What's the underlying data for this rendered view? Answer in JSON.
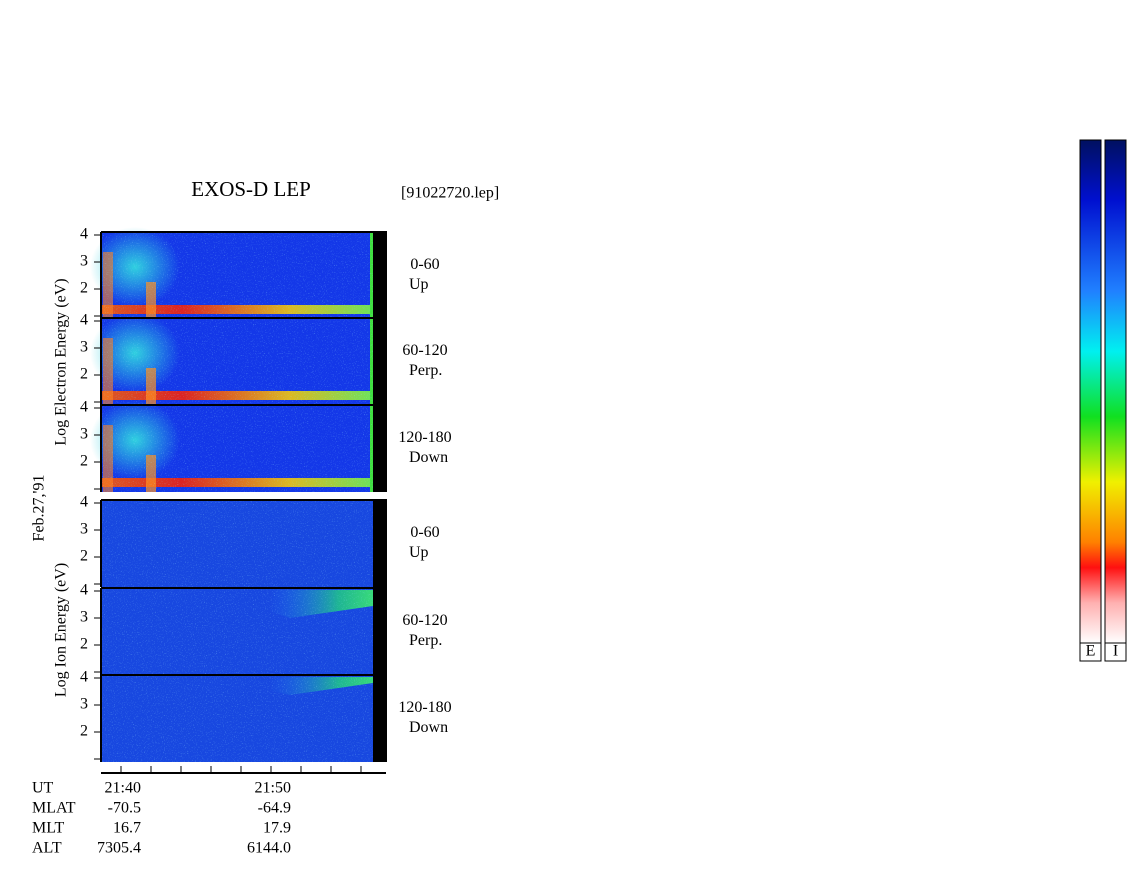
{
  "header": {
    "title": "EXOS-D LEP",
    "file": "[91022720.lep]"
  },
  "date": "Feb.27,'91",
  "panels": [
    {
      "label": "Log  Electron  Energy (eV)",
      "subpanels": [
        {
          "angle": "0-60",
          "direction": "Up"
        },
        {
          "angle": "60-120",
          "direction": "Perp."
        },
        {
          "angle": "120-180",
          "direction": "Down"
        }
      ]
    },
    {
      "label": "Log  Ion  Energy (eV)",
      "subpanels": [
        {
          "angle": "0-60",
          "direction": "Up"
        },
        {
          "angle": "60-120",
          "direction": "Perp."
        },
        {
          "angle": "120-180",
          "direction": "Down"
        }
      ]
    }
  ],
  "yticks": [
    4,
    3,
    2
  ],
  "orbit": [
    {
      "label": "UT",
      "values": [
        "21:40",
        "21:50"
      ]
    },
    {
      "label": "MLAT",
      "values": [
        "-70.5",
        "-64.9"
      ]
    },
    {
      "label": "MLT",
      "values": [
        "16.7",
        "17.9"
      ]
    },
    {
      "label": "ALT",
      "values": [
        "7305.4",
        "6144.0"
      ]
    }
  ],
  "colorbars": [
    "E",
    "I"
  ]
}
